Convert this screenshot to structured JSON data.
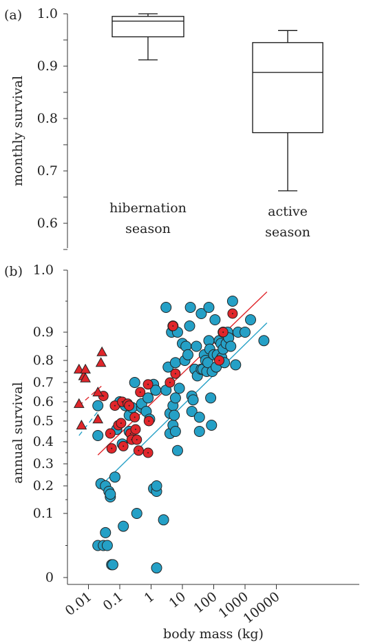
{
  "panel_a": {
    "label": "(a)",
    "ylabel": "monthly survival",
    "yticks": [
      "1.0",
      "0.9",
      "0.8",
      "0.7",
      "0.6"
    ],
    "groups": [
      {
        "label_lines": [
          "hibernation",
          "season"
        ]
      },
      {
        "label_lines": [
          "active",
          "season"
        ]
      }
    ]
  },
  "panel_b": {
    "label": "(b)",
    "ylabel": "annual survival",
    "xlabel": "body mass (kg)",
    "yticks": [
      "1.0",
      "0.9",
      "0.8",
      "0.7",
      "0.6",
      "0.5",
      "0.4",
      "0.3",
      "0.2",
      "0.1",
      "0"
    ],
    "xticks": [
      "0.01",
      "0.1",
      "1",
      "10",
      "100",
      "1000",
      "10000"
    ]
  },
  "chart_data": [
    {
      "type": "box",
      "title": "",
      "ylabel": "monthly survival",
      "ylim": [
        0.55,
        1.0
      ],
      "categories": [
        "hibernation season",
        "active season"
      ],
      "boxes": [
        {
          "whisker_low": 0.912,
          "q1": 0.956,
          "median": 0.986,
          "q3": 0.995,
          "whisker_high": 1.0
        },
        {
          "whisker_low": 0.662,
          "q1": 0.773,
          "median": 0.888,
          "q3": 0.945,
          "whisker_high": 0.968
        }
      ]
    },
    {
      "type": "scatter",
      "xlabel": "body mass (kg)",
      "ylabel": "annual survival",
      "x_scale": "log",
      "xlim": [
        0.003,
        10000
      ],
      "y_ticks": [
        0,
        0.1,
        0.2,
        0.3,
        0.4,
        0.5,
        0.6,
        0.7,
        0.8,
        0.9,
        1.0
      ],
      "series": [
        {
          "marker": "circle",
          "color": "#25a0c6",
          "points": [
            [
              0.02,
              0.58
            ],
            [
              0.02,
              0.43
            ],
            [
              0.02,
              0.05
            ],
            [
              0.025,
              0.21
            ],
            [
              0.03,
              0.05
            ],
            [
              0.035,
              0.07
            ],
            [
              0.035,
              0.2
            ],
            [
              0.04,
              0.05
            ],
            [
              0.045,
              0.18
            ],
            [
              0.05,
              0.16
            ],
            [
              0.05,
              0.17
            ],
            [
              0.055,
              0.02
            ],
            [
              0.06,
              0.02
            ],
            [
              0.07,
              0.24
            ],
            [
              0.08,
              0.46
            ],
            [
              0.1,
              0.6
            ],
            [
              0.12,
              0.39
            ],
            [
              0.13,
              0.08
            ],
            [
              0.15,
              0.58
            ],
            [
              0.2,
              0.45
            ],
            [
              0.2,
              0.53
            ],
            [
              0.25,
              0.57
            ],
            [
              0.3,
              0.7
            ],
            [
              0.35,
              0.1
            ],
            [
              0.5,
              0.57
            ],
            [
              0.5,
              0.59
            ],
            [
              0.7,
              0.55
            ],
            [
              0.8,
              0.62
            ],
            [
              0.9,
              0.51
            ],
            [
              1.2,
              0.69
            ],
            [
              1.2,
              0.19
            ],
            [
              1.4,
              0.66
            ],
            [
              1.5,
              0.18
            ],
            [
              1.5,
              0.2
            ],
            [
              1.5,
              0.015
            ],
            [
              2.5,
              0.09
            ],
            [
              3,
              0.94
            ],
            [
              3,
              0.66
            ],
            [
              3.5,
              0.77
            ],
            [
              4,
              0.54
            ],
            [
              4,
              0.44
            ],
            [
              4.5,
              0.9
            ],
            [
              5,
              0.91
            ],
            [
              5,
              0.48
            ],
            [
              5,
              0.58
            ],
            [
              5.5,
              0.53
            ],
            [
              6,
              0.45
            ],
            [
              6,
              0.79
            ],
            [
              6,
              0.62
            ],
            [
              7,
              0.9
            ],
            [
              7,
              0.36
            ],
            [
              8,
              0.67
            ],
            [
              10,
              0.86
            ],
            [
              12,
              0.8
            ],
            [
              13,
              0.85
            ],
            [
              15,
              0.82
            ],
            [
              17,
              0.91
            ],
            [
              18,
              0.94
            ],
            [
              20,
              0.63
            ],
            [
              20,
              0.55
            ],
            [
              22,
              0.61
            ],
            [
              25,
              0.76
            ],
            [
              28,
              0.85
            ],
            [
              30,
              0.73
            ],
            [
              35,
              0.52
            ],
            [
              35,
              0.45
            ],
            [
              40,
              0.76
            ],
            [
              40,
              0.93
            ],
            [
              45,
              0.76
            ],
            [
              50,
              0.82
            ],
            [
              55,
              0.8
            ],
            [
              60,
              0.75
            ],
            [
              65,
              0.79
            ],
            [
              70,
              0.94
            ],
            [
              70,
              0.87
            ],
            [
              75,
              0.84
            ],
            [
              80,
              0.62
            ],
            [
              85,
              0.48
            ],
            [
              90,
              0.75
            ],
            [
              100,
              0.82
            ],
            [
              110,
              0.92
            ],
            [
              120,
              0.77
            ],
            [
              130,
              0.82
            ],
            [
              150,
              0.87
            ],
            [
              170,
              0.86
            ],
            [
              180,
              0.81
            ],
            [
              200,
              0.84
            ],
            [
              200,
              0.9
            ],
            [
              220,
              0.79
            ],
            [
              250,
              0.86
            ],
            [
              280,
              0.9
            ],
            [
              300,
              0.88
            ],
            [
              350,
              0.85
            ],
            [
              400,
              0.95
            ],
            [
              500,
              0.78
            ],
            [
              600,
              0.9
            ],
            [
              1000,
              0.9
            ],
            [
              1500,
              0.92
            ],
            [
              4000,
              0.87
            ]
          ]
        },
        {
          "marker": "circle",
          "color": "#e0262b",
          "points": [
            [
              0.03,
              0.63
            ],
            [
              0.05,
              0.44
            ],
            [
              0.055,
              0.37
            ],
            [
              0.07,
              0.58
            ],
            [
              0.09,
              0.48
            ],
            [
              0.11,
              0.49
            ],
            [
              0.12,
              0.6
            ],
            [
              0.13,
              0.38
            ],
            [
              0.18,
              0.59
            ],
            [
              0.2,
              0.58
            ],
            [
              0.22,
              0.44
            ],
            [
              0.24,
              0.41
            ],
            [
              0.3,
              0.52
            ],
            [
              0.32,
              0.46
            ],
            [
              0.35,
              0.41
            ],
            [
              0.4,
              0.36
            ],
            [
              0.45,
              0.65
            ],
            [
              0.8,
              0.35
            ],
            [
              0.8,
              0.69
            ],
            [
              0.85,
              0.5
            ],
            [
              4,
              0.7
            ],
            [
              5,
              0.91
            ],
            [
              6,
              0.74
            ],
            [
              150,
              0.8
            ],
            [
              200,
              0.9
            ],
            [
              400,
              0.93
            ]
          ]
        },
        {
          "marker": "triangle",
          "color": "#e0262b",
          "points": [
            [
              0.005,
              0.76
            ],
            [
              0.005,
              0.59
            ],
            [
              0.006,
              0.48
            ],
            [
              0.007,
              0.73
            ],
            [
              0.008,
              0.76
            ],
            [
              0.008,
              0.72
            ],
            [
              0.02,
              0.51
            ],
            [
              0.02,
              0.65
            ],
            [
              0.025,
              0.79
            ],
            [
              0.027,
              0.83
            ]
          ]
        }
      ],
      "fit_lines": [
        {
          "color": "#e0262b",
          "from": [
            0.02,
            0.34
          ],
          "to": [
            5000,
            0.965
          ]
        },
        {
          "color": "#25a0c6",
          "from": [
            0.02,
            0.19
          ],
          "to": [
            5000,
            0.915
          ]
        },
        {
          "color": "#e0262b",
          "style": "dashed",
          "from": [
            0.005,
            0.58
          ],
          "to": [
            0.03,
            0.69
          ]
        },
        {
          "color": "#25a0c6",
          "style": "dashed",
          "from": [
            0.005,
            0.43
          ],
          "to": [
            0.02,
            0.55
          ]
        }
      ]
    }
  ]
}
